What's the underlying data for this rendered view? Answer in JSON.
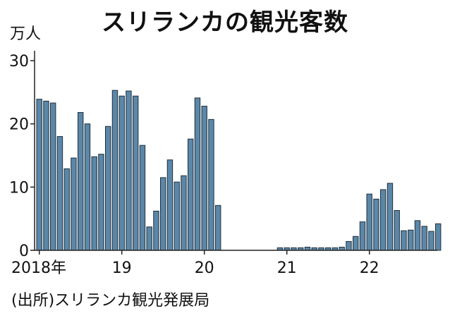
{
  "title": "スリランカの観光客数",
  "unit_label": "万人",
  "source": "(出所)スリランカ観光発展局",
  "colors": {
    "bar_fill": "#5b87a8",
    "bar_stroke": "#1f2f3d",
    "axis": "#222222"
  },
  "chart_data": {
    "type": "bar",
    "title": "スリランカの観光客数",
    "ylabel": "万人",
    "xlabel": "",
    "ylim": [
      0,
      30
    ],
    "y_ticks": [
      0,
      10,
      20,
      30
    ],
    "grid": false,
    "start": "2018-01",
    "x_tick_labels": [
      {
        "label": "2018年",
        "index": 0
      },
      {
        "label": "19",
        "index": 12
      },
      {
        "label": "20",
        "index": 24
      },
      {
        "label": "21",
        "index": 36
      },
      {
        "label": "22",
        "index": 48
      }
    ],
    "values": [
      23.9,
      23.6,
      23.3,
      18.0,
      12.9,
      14.6,
      21.8,
      20.0,
      14.8,
      15.2,
      19.6,
      25.3,
      24.4,
      25.2,
      24.4,
      16.6,
      3.7,
      6.2,
      11.5,
      14.3,
      10.8,
      11.8,
      17.6,
      24.1,
      22.8,
      20.7,
      7.1,
      0,
      0,
      0,
      0,
      0,
      0,
      0,
      0,
      0.4,
      0.4,
      0.4,
      0.4,
      0.5,
      0.4,
      0.4,
      0.4,
      0.4,
      0.5,
      1.4,
      2.2,
      4.5,
      8.9,
      8.1,
      9.6,
      10.6,
      6.3,
      3.1,
      3.2,
      4.7,
      3.8,
      3.0,
      4.2
    ]
  }
}
